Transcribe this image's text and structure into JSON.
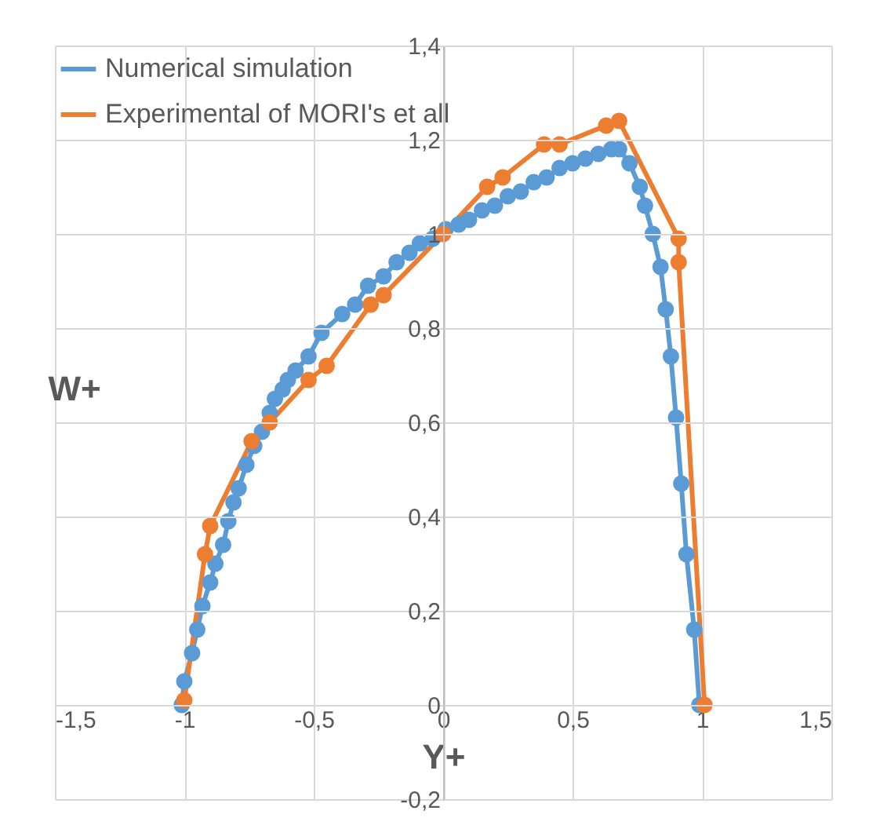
{
  "chart_data": {
    "type": "line",
    "xlabel": "Y+",
    "ylabel": "W+",
    "xlim": [
      -1.5,
      1.5
    ],
    "xticks": [
      {
        "value": -1.5,
        "label": "-1,5"
      },
      -1,
      {
        "value": -0.5,
        "label": "-0,5"
      },
      0,
      {
        "value": 0.5,
        "label": "0,5"
      },
      1,
      {
        "value": 1.5,
        "label": "1,5"
      }
    ],
    "ylim": [
      -0.2,
      1.4
    ],
    "yticks": [
      {
        "value": -0.2,
        "label": "-0,2"
      },
      0,
      {
        "value": 0.2,
        "label": "0,2"
      },
      {
        "value": 0.4,
        "label": "0,4"
      },
      {
        "value": 0.6,
        "label": "0,6"
      },
      {
        "value": 0.8,
        "label": "0,8"
      },
      1,
      {
        "value": 1.2,
        "label": "1,2"
      },
      {
        "value": 1.4,
        "label": "1,4"
      }
    ],
    "grid": true,
    "legend": "top left",
    "marker": "circle",
    "series": [
      {
        "name": "Numerical simulation",
        "color": "#5b9bd5",
        "x": [
          -1.01,
          -1.0,
          -0.97,
          -0.95,
          -0.93,
          -0.9,
          -0.88,
          -0.85,
          -0.83,
          -0.81,
          -0.79,
          -0.76,
          -0.73,
          -0.7,
          -0.67,
          -0.65,
          -0.62,
          -0.6,
          -0.57,
          -0.52,
          -0.47,
          -0.39,
          -0.34,
          -0.29,
          -0.23,
          -0.18,
          -0.13,
          -0.09,
          -0.04,
          0.01,
          0.06,
          0.1,
          0.15,
          0.2,
          0.25,
          0.3,
          0.35,
          0.4,
          0.45,
          0.5,
          0.55,
          0.6,
          0.65,
          0.68,
          0.72,
          0.76,
          0.78,
          0.81,
          0.84,
          0.86,
          0.88,
          0.9,
          0.92,
          0.94,
          0.97,
          0.99
        ],
        "values": [
          0.0,
          0.05,
          0.11,
          0.16,
          0.21,
          0.26,
          0.3,
          0.34,
          0.39,
          0.43,
          0.46,
          0.51,
          0.55,
          0.58,
          0.62,
          0.65,
          0.67,
          0.69,
          0.71,
          0.74,
          0.79,
          0.83,
          0.85,
          0.89,
          0.91,
          0.94,
          0.96,
          0.98,
          0.99,
          1.01,
          1.02,
          1.03,
          1.05,
          1.06,
          1.08,
          1.09,
          1.11,
          1.12,
          1.14,
          1.15,
          1.16,
          1.17,
          1.18,
          1.18,
          1.15,
          1.1,
          1.06,
          1.0,
          0.93,
          0.84,
          0.74,
          0.61,
          0.47,
          0.32,
          0.16,
          0.0
        ]
      },
      {
        "name": "Experimental of MORI's et all",
        "color": "#ed7d31",
        "x": [
          -1.0,
          -0.92,
          -0.9,
          -0.74,
          -0.67,
          -0.52,
          -0.45,
          -0.28,
          -0.23,
          0.0,
          0.17,
          0.23,
          0.39,
          0.45,
          0.63,
          0.68,
          0.91,
          0.91,
          1.01
        ],
        "values": [
          0.01,
          0.32,
          0.38,
          0.56,
          0.6,
          0.69,
          0.72,
          0.85,
          0.87,
          1.0,
          1.1,
          1.12,
          1.19,
          1.19,
          1.23,
          1.24,
          0.99,
          0.94,
          0.0
        ]
      }
    ]
  }
}
